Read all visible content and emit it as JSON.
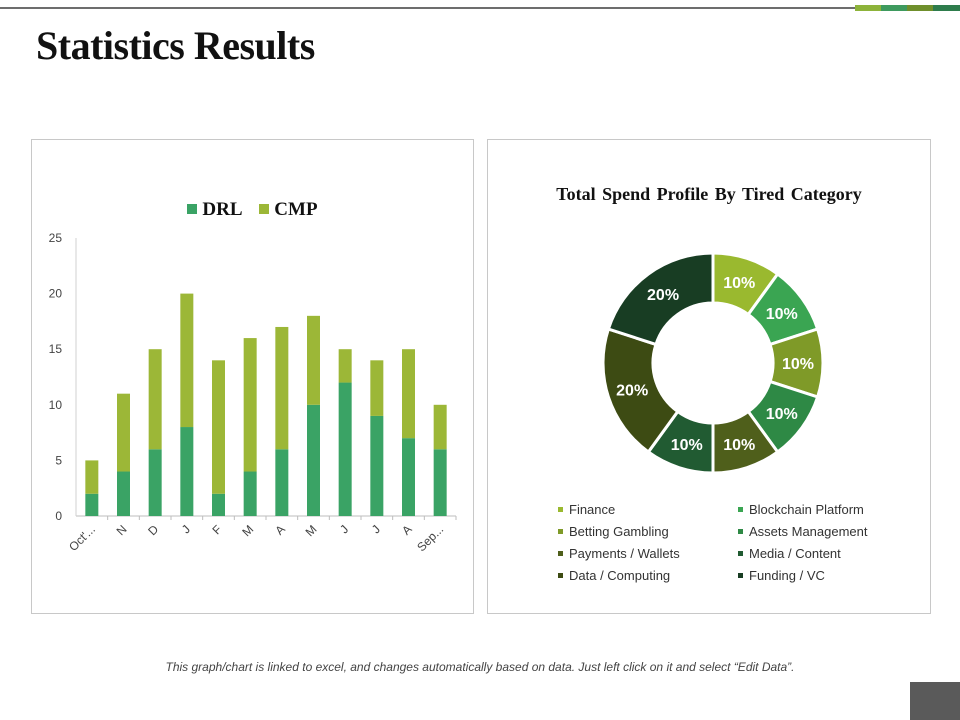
{
  "slide": {
    "title": "Statistics Results",
    "footer_note": "This graph/chart is linked to excel, and changes automatically based on data. Just left click on it and select “Edit Data”.",
    "accent_colors": [
      "#8db33a",
      "#3e9a5e",
      "#6f8f2c",
      "#2e7c4c"
    ]
  },
  "chart_data": [
    {
      "type": "bar",
      "stacked": true,
      "categories": [
        "Oct'...",
        "N",
        "D",
        "J",
        "F",
        "M",
        "A",
        "M",
        "J",
        "J",
        "A",
        "Sep..."
      ],
      "series": [
        {
          "name": "DRL",
          "color": "#3aa365",
          "values": [
            2,
            4,
            6,
            8,
            2,
            4,
            6,
            10,
            12,
            9,
            7,
            6
          ]
        },
        {
          "name": "CMP",
          "color": "#9cb737",
          "values": [
            3,
            7,
            9,
            12,
            12,
            12,
            11,
            8,
            3,
            5,
            8,
            4
          ]
        }
      ],
      "title": "",
      "xlabel": "",
      "ylabel": "",
      "ylim": [
        0,
        25
      ],
      "yticks": [
        0,
        5,
        10,
        15,
        20,
        25
      ],
      "legend_position": "top"
    },
    {
      "type": "pie",
      "donut": true,
      "title": "Total Spend Profile By Tired Category",
      "labels": [
        "Finance",
        "Blockchain Platform",
        "Betting Gambling",
        "Assets Management",
        "Payments / Wallets",
        "Media / Content",
        "Data / Computing",
        "Funding / VC"
      ],
      "values": [
        10,
        10,
        10,
        10,
        10,
        10,
        20,
        20
      ],
      "data_labels": [
        "10%",
        "10%",
        "10%",
        "10%",
        "10%",
        "10%",
        "20%",
        "20%"
      ],
      "colors": [
        "#9ab92f",
        "#3aa552",
        "#7f9a28",
        "#2e8945",
        "#4f5f1b",
        "#215b32",
        "#3d4b13",
        "#183d23"
      ],
      "legend_position": "bottom"
    }
  ]
}
